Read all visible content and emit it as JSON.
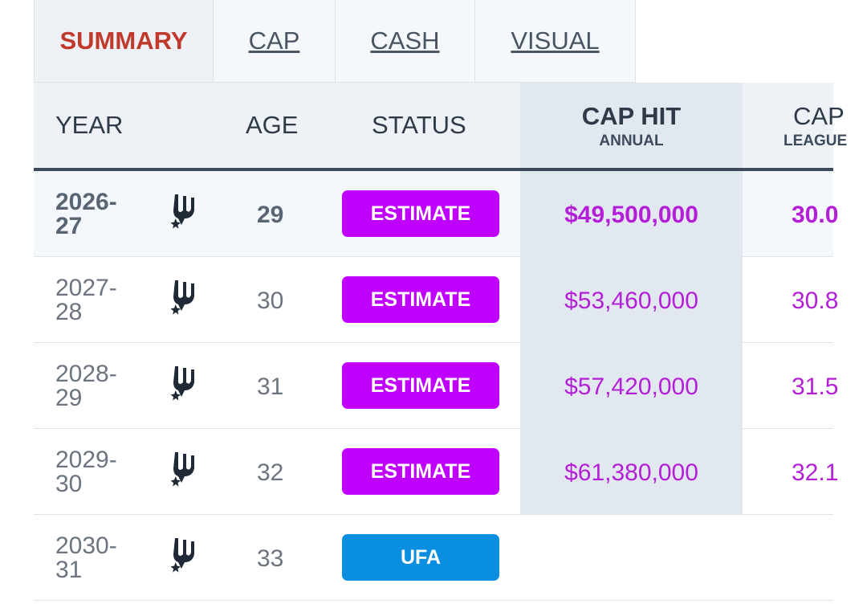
{
  "tabs": [
    "SUMMARY",
    "CAP",
    "CASH",
    "VISUAL"
  ],
  "table": {
    "headers": {
      "year": "YEAR",
      "age": "AGE",
      "status": "STATUS",
      "cap_hit": "CAP HIT",
      "cap_hit_sub": "ANNUAL",
      "cap_pct": "CAP",
      "cap_pct_sub": "LEAGUE"
    },
    "rows": [
      {
        "year": "2026-27",
        "age": "29",
        "status": "ESTIMATE",
        "cap_hit": "$49,500,000",
        "cap_pct": "30.0"
      },
      {
        "year": "2027-28",
        "age": "30",
        "status": "ESTIMATE",
        "cap_hit": "$53,460,000",
        "cap_pct": "30.8"
      },
      {
        "year": "2028-29",
        "age": "31",
        "status": "ESTIMATE",
        "cap_hit": "$57,420,000",
        "cap_pct": "31.5"
      },
      {
        "year": "2029-30",
        "age": "32",
        "status": "ESTIMATE",
        "cap_hit": "$61,380,000",
        "cap_pct": "32.1"
      },
      {
        "year": "2030-31",
        "age": "33",
        "status": "UFA"
      }
    ]
  }
}
